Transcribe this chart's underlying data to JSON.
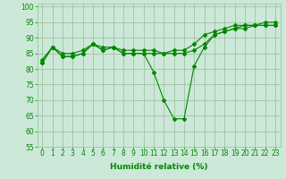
{
  "x": [
    0,
    1,
    2,
    3,
    4,
    5,
    6,
    7,
    8,
    9,
    10,
    11,
    12,
    13,
    14,
    15,
    16,
    17,
    18,
    19,
    20,
    21,
    22,
    23
  ],
  "y_main": [
    82,
    87,
    84,
    84,
    85,
    88,
    86,
    87,
    85,
    85,
    85,
    79,
    70,
    64,
    64,
    81,
    87,
    91,
    92,
    93,
    94,
    94,
    94,
    94
  ],
  "y_upper": [
    83,
    87,
    85,
    85,
    86,
    88,
    87,
    87,
    86,
    86,
    86,
    86,
    85,
    86,
    86,
    88,
    91,
    92,
    93,
    94,
    94,
    94,
    95,
    95
  ],
  "y_lower": [
    82,
    87,
    84,
    84,
    85,
    88,
    86,
    87,
    85,
    85,
    85,
    85,
    85,
    85,
    85,
    86,
    88,
    91,
    92,
    93,
    93,
    94,
    94,
    94
  ],
  "bg_color": "#cce8d8",
  "line_color": "#008800",
  "grid_color": "#99bb99",
  "xlabel": "Humidité relative (%)",
  "ylim": [
    55,
    101
  ],
  "yticks": [
    55,
    60,
    65,
    70,
    75,
    80,
    85,
    90,
    95,
    100
  ],
  "xlim": [
    -0.5,
    23.5
  ],
  "xticks": [
    0,
    1,
    2,
    3,
    4,
    5,
    6,
    7,
    8,
    9,
    10,
    11,
    12,
    13,
    14,
    15,
    16,
    17,
    18,
    19,
    20,
    21,
    22,
    23
  ],
  "marker": "D",
  "marker_size": 2.0,
  "line_width": 0.8,
  "xlabel_fontsize": 6.5,
  "tick_fontsize": 5.5
}
